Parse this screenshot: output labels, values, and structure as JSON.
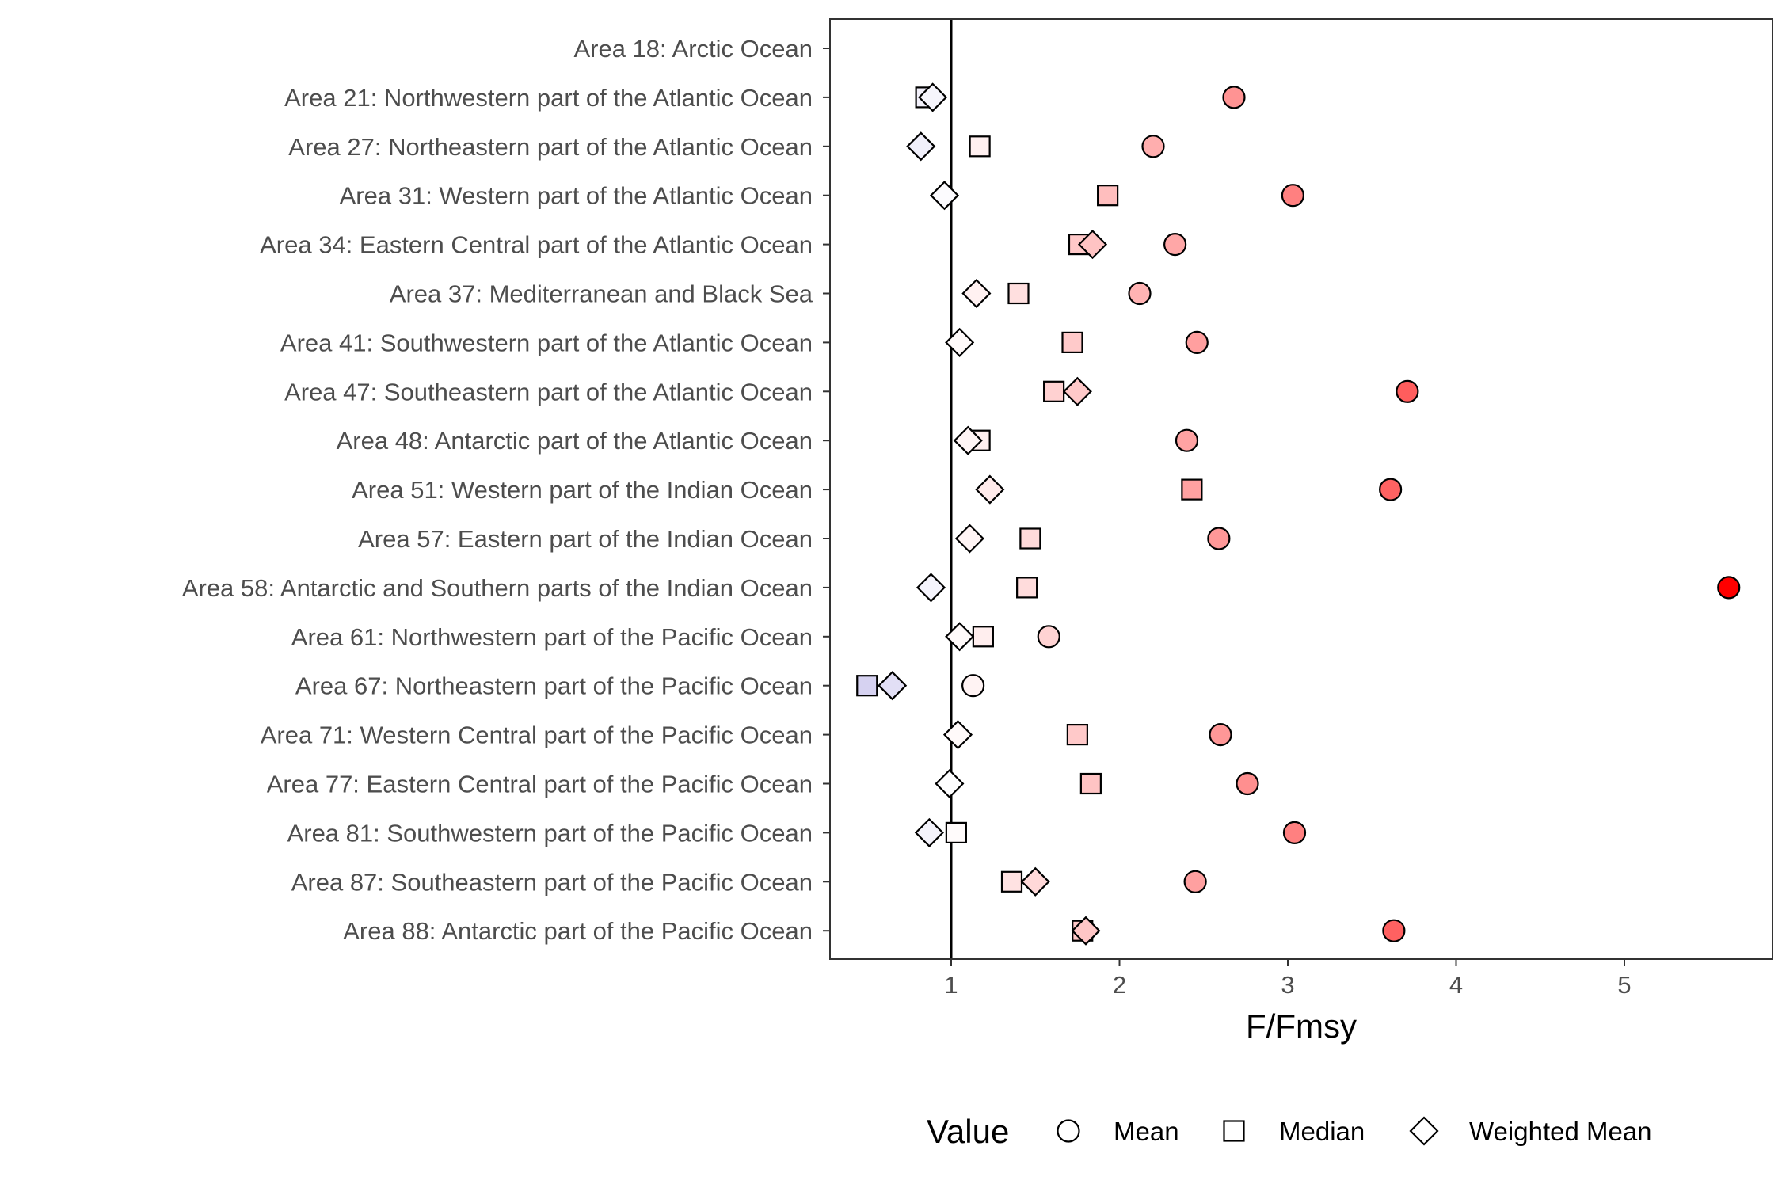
{
  "chart_data": {
    "type": "scatter",
    "xlabel": "F/Fmsy",
    "ylabel": "",
    "xlim": [
      0.28,
      5.88
    ],
    "xticks": [
      1,
      2,
      3,
      4,
      5
    ],
    "reference_line_x": 1,
    "grid": false,
    "legend_position": "bottom",
    "legend": {
      "title": "Value",
      "entries": [
        {
          "name": "Mean",
          "shape": "circle"
        },
        {
          "name": "Median",
          "shape": "square"
        },
        {
          "name": "Weighted Mean",
          "shape": "diamond"
        }
      ]
    },
    "color_scale": {
      "low": "#6a5acd",
      "mid": "#ffffff",
      "high": "#ff0000",
      "midpoint": 1
    },
    "categories": [
      "Area 18: Arctic Ocean",
      "Area 21: Northwestern part of the Atlantic Ocean",
      "Area 27: Northeastern part of the Atlantic Ocean",
      "Area 31: Western part of the Atlantic Ocean",
      "Area 34: Eastern Central part of the Atlantic Ocean",
      "Area 37: Mediterranean and Black Sea",
      "Area 41: Southwestern part of the Atlantic Ocean",
      "Area 47: Southeastern part of the Atlantic Ocean",
      "Area 48: Antarctic part of the Atlantic Ocean",
      "Area 51: Western part of the Indian Ocean",
      "Area 57: Eastern part of the Indian Ocean",
      "Area 58: Antarctic and Southern parts of the Indian Ocean",
      "Area 61: Northwestern part of the Pacific Ocean",
      "Area 67: Northeastern part of the Pacific Ocean",
      "Area 71: Western Central part of the Pacific Ocean",
      "Area 77: Eastern Central part of the Pacific Ocean",
      "Area 81: Southwestern part of the Pacific Ocean",
      "Area 87: Southeastern part of the Pacific Ocean",
      "Area 88: Antarctic part of the Pacific Ocean"
    ],
    "series": [
      {
        "name": "Mean",
        "shape": "circle",
        "values": [
          null,
          2.68,
          2.2,
          3.03,
          2.33,
          2.12,
          2.46,
          3.71,
          2.4,
          3.61,
          2.59,
          5.62,
          1.58,
          1.13,
          2.6,
          2.76,
          3.04,
          2.45,
          3.63
        ]
      },
      {
        "name": "Median",
        "shape": "square",
        "values": [
          null,
          0.85,
          1.17,
          1.93,
          1.76,
          1.4,
          1.72,
          1.61,
          1.17,
          2.43,
          1.47,
          1.45,
          1.19,
          0.5,
          1.75,
          1.83,
          1.03,
          1.36,
          1.78
        ]
      },
      {
        "name": "Weighted Mean",
        "shape": "diamond",
        "values": [
          null,
          0.89,
          0.82,
          0.96,
          1.84,
          1.15,
          1.05,
          1.75,
          1.1,
          1.23,
          1.11,
          0.88,
          1.05,
          0.65,
          1.04,
          0.99,
          0.87,
          1.5,
          1.8
        ]
      }
    ]
  }
}
